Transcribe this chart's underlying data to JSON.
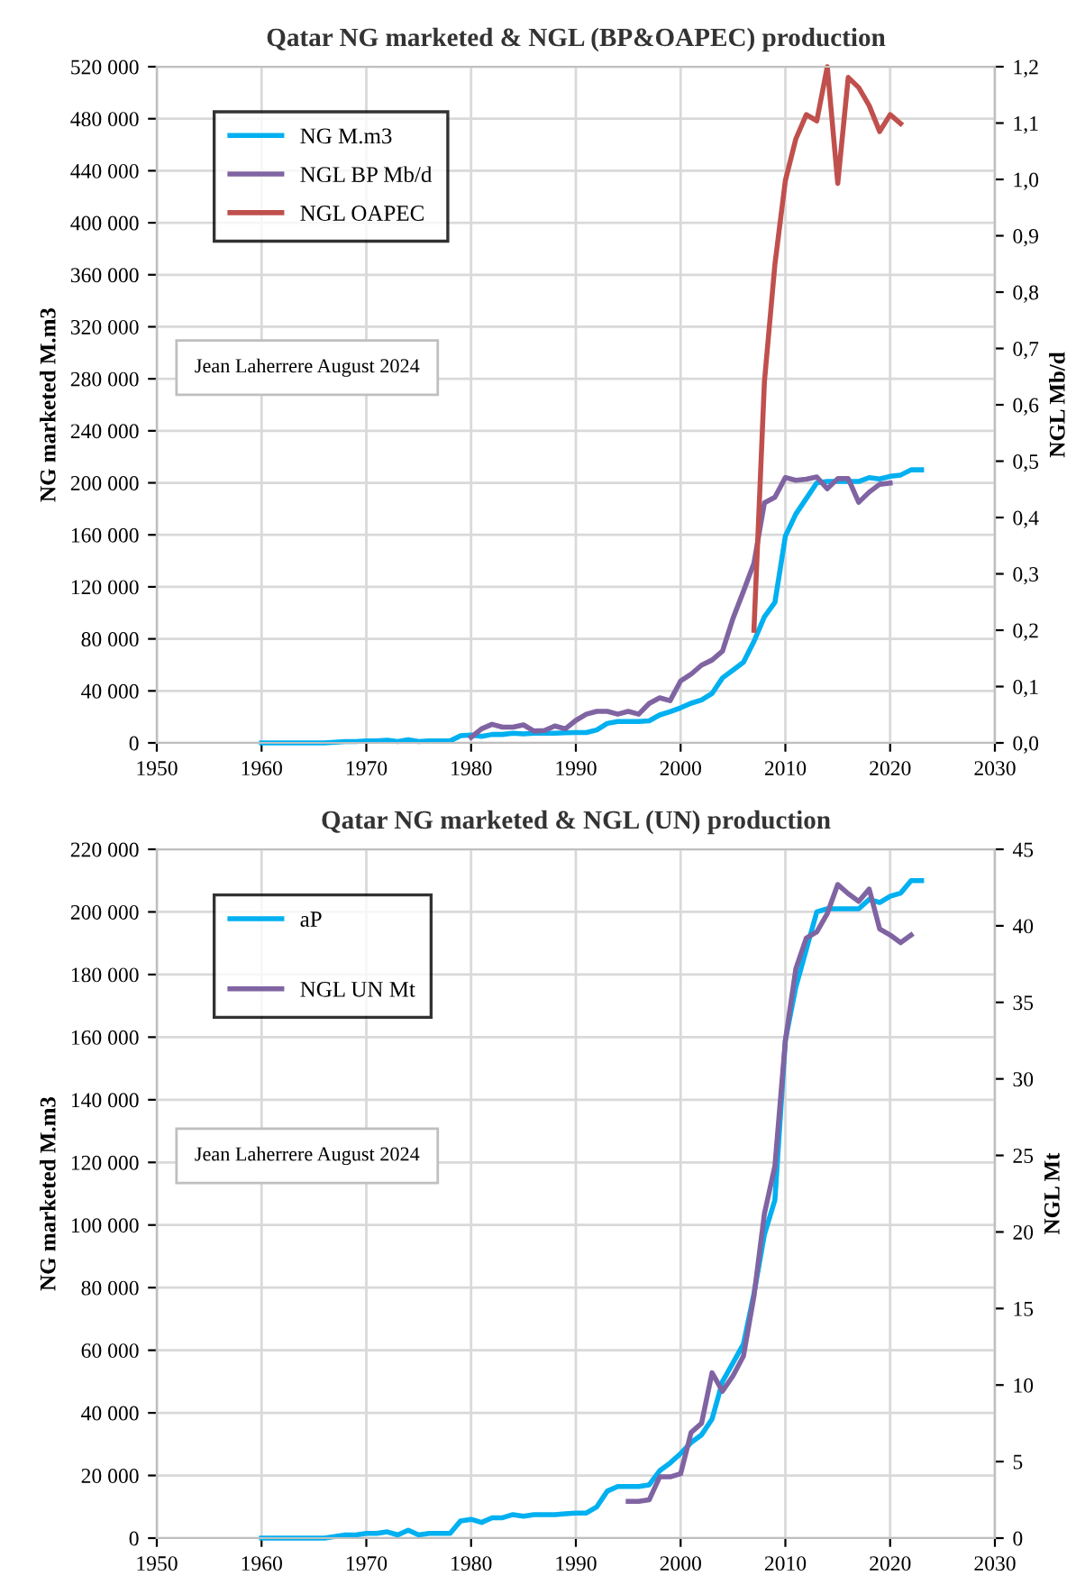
{
  "chart_data": [
    {
      "type": "line",
      "title": "Qatar NG marketed & NGL (BP&OAPEC) production",
      "ylabel": "NG marketed M.m3",
      "y2label": "NGL Mb/d",
      "annotations": [
        "Jean Laherrere August 2024"
      ],
      "grid": true,
      "legend": "top left",
      "marker": "none",
      "line_style": "solid",
      "xlim": [
        1950,
        2030
      ],
      "xticks": [
        1950,
        1960,
        1970,
        1980,
        1990,
        2000,
        2010,
        2020,
        2030
      ],
      "ylim": [
        0,
        520000
      ],
      "yticks": [
        0,
        {
          "value": 40000,
          "label": "40 000"
        },
        {
          "value": 80000,
          "label": "80 000"
        },
        {
          "value": 120000,
          "label": "120 000"
        },
        {
          "value": 160000,
          "label": "160 000"
        },
        {
          "value": 200000,
          "label": "200 000"
        },
        {
          "value": 240000,
          "label": "240 000"
        },
        {
          "value": 280000,
          "label": "280 000"
        },
        {
          "value": 320000,
          "label": "320 000"
        },
        {
          "value": 360000,
          "label": "360 000"
        },
        {
          "value": 400000,
          "label": "400 000"
        },
        {
          "value": 440000,
          "label": "440 000"
        },
        {
          "value": 480000,
          "label": "480 000"
        },
        {
          "value": 520000,
          "label": "520 000"
        }
      ],
      "y2lim": [
        0,
        1.2
      ],
      "y2ticks": [
        {
          "value": 0,
          "label": "0,0"
        },
        {
          "value": 0.1,
          "label": "0,1"
        },
        {
          "value": 0.2,
          "label": "0,2"
        },
        {
          "value": 0.3,
          "label": "0,3"
        },
        {
          "value": 0.4,
          "label": "0,4"
        },
        {
          "value": 0.5,
          "label": "0,5"
        },
        {
          "value": 0.6,
          "label": "0,6"
        },
        {
          "value": 0.7,
          "label": "0,7"
        },
        {
          "value": 0.8,
          "label": "0,8"
        },
        {
          "value": 0.9,
          "label": "0,9"
        },
        {
          "value": 1.0,
          "label": "1,0"
        },
        {
          "value": 1.1,
          "label": "1,1"
        },
        {
          "value": 1.2,
          "label": "1,2"
        }
      ],
      "series": [
        {
          "name": "NG M.m3",
          "color": "#00b0f0",
          "x": [
            1960,
            1961,
            1962,
            1963,
            1964,
            1965,
            1966,
            1967,
            1968,
            1969,
            1970,
            1971,
            1972,
            1973,
            1974,
            1975,
            1976,
            1977,
            1978,
            1979,
            1980,
            1981,
            1982,
            1983,
            1984,
            1985,
            1986,
            1987,
            1988,
            1989,
            1990,
            1991,
            1992,
            1993,
            1994,
            1995,
            1996,
            1997,
            1998,
            1999,
            2000,
            2001,
            2002,
            2003,
            2004,
            2005,
            2006,
            2007,
            2008,
            2009,
            2010,
            2011,
            2012,
            2013,
            2014,
            2015,
            2016,
            2017,
            2018,
            2019,
            2020,
            2021,
            2022,
            2023
          ],
          "values": [
            0,
            0,
            0,
            0,
            0,
            0,
            0,
            500,
            1000,
            1000,
            1500,
            1500,
            2000,
            1000,
            2500,
            1000,
            1500,
            1500,
            1500,
            5500,
            6000,
            5000,
            6500,
            6500,
            7500,
            7000,
            7500,
            7500,
            7500,
            7800,
            8000,
            8000,
            10000,
            15000,
            16500,
            16500,
            16500,
            17000,
            21500,
            24000,
            27000,
            30500,
            33000,
            38000,
            50000,
            56000,
            62000,
            78000,
            97000,
            108000,
            159000,
            176000,
            188000,
            200000,
            201000,
            201000,
            201000,
            201000,
            204000,
            203000,
            205000,
            206000,
            210000,
            210000
          ]
        },
        {
          "name": "NGL BP Mb/d",
          "color": "#8064a2",
          "axis": "y2",
          "x": [
            1980,
            1981,
            1982,
            1983,
            1984,
            1985,
            1986,
            1987,
            1988,
            1989,
            1990,
            1991,
            1992,
            1993,
            1994,
            1995,
            1996,
            1997,
            1998,
            1999,
            2000,
            2001,
            2002,
            2003,
            2004,
            2005,
            2006,
            2007,
            2008,
            2009,
            2010,
            2011,
            2012,
            2013,
            2014,
            2015,
            2016,
            2017,
            2018,
            2019,
            2020
          ],
          "values": [
            0.01,
            0.025,
            0.033,
            0.028,
            0.028,
            0.032,
            0.021,
            0.022,
            0.03,
            0.025,
            0.04,
            0.051,
            0.056,
            0.056,
            0.051,
            0.056,
            0.051,
            0.07,
            0.08,
            0.075,
            0.11,
            0.122,
            0.138,
            0.147,
            0.163,
            0.221,
            0.269,
            0.319,
            0.426,
            0.436,
            0.471,
            0.466,
            0.468,
            0.472,
            0.451,
            0.469,
            0.469,
            0.427,
            0.445,
            0.459,
            0.461
          ]
        },
        {
          "name": "NGL OAPEC",
          "color": "#c0504d",
          "axis": "y2",
          "x": [
            2007,
            2008,
            2009,
            2010,
            2011,
            2012,
            2013,
            2014,
            2015,
            2016,
            2017,
            2018,
            2019,
            2020,
            2021
          ],
          "values": [
            0.2,
            0.641,
            0.849,
            0.998,
            1.072,
            1.115,
            1.104,
            1.2,
            0.993,
            1.181,
            1.163,
            1.131,
            1.085,
            1.115,
            1.099
          ]
        }
      ]
    },
    {
      "type": "line",
      "title": "Qatar NG marketed & NGL (UN) production",
      "ylabel": "NG marketed M.m3",
      "y2label": "NGL Mt",
      "annotations": [
        "Jean Laherrere August 2024"
      ],
      "grid": true,
      "legend": "top left",
      "marker": "none",
      "line_style": "solid",
      "xlim": [
        1950,
        2030
      ],
      "xticks": [
        1950,
        1960,
        1970,
        1980,
        1990,
        2000,
        2010,
        2020,
        2030
      ],
      "ylim": [
        0,
        220000
      ],
      "yticks": [
        0,
        {
          "value": 20000,
          "label": "20 000"
        },
        {
          "value": 40000,
          "label": "40 000"
        },
        {
          "value": 60000,
          "label": "60 000"
        },
        {
          "value": 80000,
          "label": "80 000"
        },
        {
          "value": 100000,
          "label": "100 000"
        },
        {
          "value": 120000,
          "label": "120 000"
        },
        {
          "value": 140000,
          "label": "140 000"
        },
        {
          "value": 160000,
          "label": "160 000"
        },
        {
          "value": 180000,
          "label": "180 000"
        },
        {
          "value": 200000,
          "label": "200 000"
        },
        {
          "value": 220000,
          "label": "220 000"
        }
      ],
      "y2lim": [
        0,
        45
      ],
      "y2ticks": [
        0,
        5,
        10,
        15,
        20,
        25,
        30,
        35,
        40,
        45
      ],
      "series": [
        {
          "name": "aP",
          "color": "#00b0f0",
          "x": [
            1960,
            1961,
            1962,
            1963,
            1964,
            1965,
            1966,
            1967,
            1968,
            1969,
            1970,
            1971,
            1972,
            1973,
            1974,
            1975,
            1976,
            1977,
            1978,
            1979,
            1980,
            1981,
            1982,
            1983,
            1984,
            1985,
            1986,
            1987,
            1988,
            1989,
            1990,
            1991,
            1992,
            1993,
            1994,
            1995,
            1996,
            1997,
            1998,
            1999,
            2000,
            2001,
            2002,
            2003,
            2004,
            2005,
            2006,
            2007,
            2008,
            2009,
            2010,
            2011,
            2012,
            2013,
            2014,
            2015,
            2016,
            2017,
            2018,
            2019,
            2020,
            2021,
            2022,
            2023
          ],
          "values": [
            0,
            0,
            0,
            0,
            0,
            0,
            0,
            500,
            1000,
            1000,
            1500,
            1500,
            2000,
            1000,
            2500,
            1000,
            1500,
            1500,
            1500,
            5500,
            6000,
            5000,
            6500,
            6500,
            7500,
            7000,
            7500,
            7500,
            7500,
            7800,
            8000,
            8000,
            10000,
            15000,
            16500,
            16500,
            16500,
            17000,
            21500,
            24000,
            27000,
            30500,
            33000,
            38000,
            50000,
            56000,
            62000,
            78000,
            97000,
            108000,
            159000,
            176000,
            188000,
            200000,
            201000,
            201000,
            201000,
            201000,
            204000,
            203000,
            205000,
            206000,
            210000,
            210000
          ]
        },
        {
          "name": "NGL UN Mt",
          "color": "#8064a2",
          "axis": "y2",
          "x": [
            1995,
            1996,
            1997,
            1998,
            1999,
            2000,
            2001,
            2002,
            2003,
            2004,
            2005,
            2006,
            2007,
            2008,
            2009,
            2010,
            2011,
            2012,
            2013,
            2014,
            2015,
            2016,
            2017,
            2018,
            2019,
            2020,
            2021,
            2022
          ],
          "values": [
            2.4,
            2.4,
            2.5,
            4.0,
            4.0,
            4.2,
            6.9,
            7.5,
            10.8,
            9.6,
            10.6,
            11.9,
            15.8,
            21.2,
            24.3,
            32.5,
            37.2,
            39.2,
            39.6,
            40.8,
            42.7,
            42.1,
            41.6,
            42.4,
            39.8,
            39.4,
            38.9,
            39.4
          ]
        }
      ]
    }
  ]
}
